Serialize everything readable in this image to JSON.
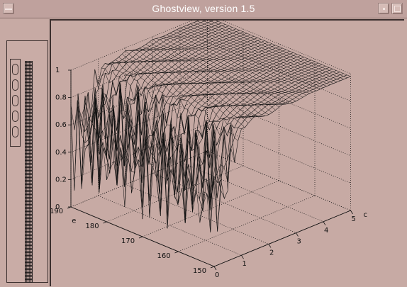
{
  "window": {
    "title": "Ghostview, version 1.5",
    "icons": [
      "window-menu-icon",
      "minimize-icon",
      "maximize-icon"
    ]
  },
  "sidebar": {
    "thumbnails": [
      "page-thumbnail-1",
      "page-thumbnail-2",
      "page-thumbnail-3",
      "page-thumbnail-4",
      "page-thumbnail-5"
    ]
  },
  "chart_data": {
    "type": "surface",
    "zlabel": "",
    "z_ticks": [
      "0",
      "0.2",
      "0.4",
      "0.6",
      "0.8",
      "1"
    ],
    "y_axis_label": "e",
    "y_ticks": [
      "190",
      "180",
      "170",
      "160",
      "150"
    ],
    "x_axis_label": "c",
    "x_ticks": [
      "0",
      "1",
      "2",
      "3",
      "4",
      "5"
    ],
    "zlim": [
      0,
      1
    ],
    "xlim": [
      0,
      5
    ],
    "ylim": [
      150,
      190
    ],
    "grid": true,
    "description_values": {
      "low_c_region_mean": 0.55,
      "high_c_region_mean": 0.97
    }
  }
}
